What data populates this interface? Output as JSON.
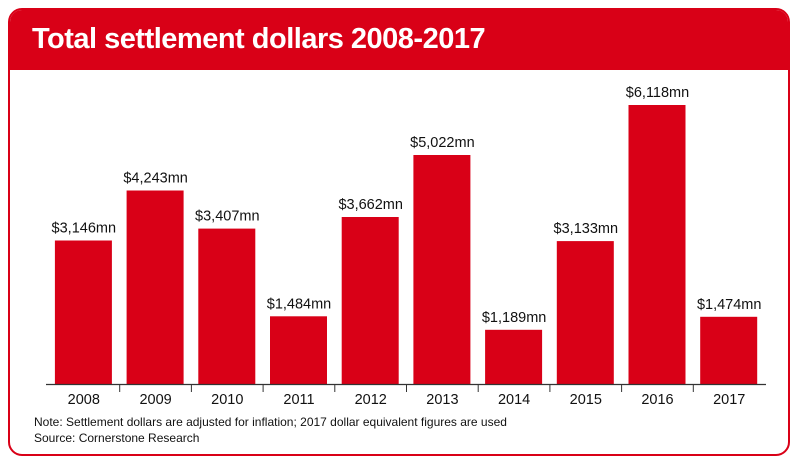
{
  "header": {
    "title": "Total settlement dollars 2008-2017"
  },
  "footer": {
    "note": "Note: Settlement dollars are adjusted for inflation; 2017 dollar equivalent figures are used",
    "source": "Source: Cornerstone Research"
  },
  "colors": {
    "accent": "#d90017",
    "bar": "#d90017",
    "axis": "#333333"
  },
  "chart_data": {
    "type": "bar",
    "title": "Total settlement dollars 2008-2017",
    "xlabel": "",
    "ylabel": "",
    "categories": [
      "2008",
      "2009",
      "2010",
      "2011",
      "2012",
      "2013",
      "2014",
      "2015",
      "2016",
      "2017"
    ],
    "values": [
      3146,
      4243,
      3407,
      1484,
      3662,
      5022,
      1189,
      3133,
      6118,
      1474
    ],
    "data_labels": [
      "$3,146mn",
      "$4,243mn",
      "$3,407mn",
      "$1,484mn",
      "$3,662mn",
      "$5,022mn",
      "$1,189mn",
      "$3,133mn",
      "$6,118mn",
      "$1,474mn"
    ],
    "ylim": [
      0,
      6118
    ],
    "grid": false,
    "legend": "none"
  }
}
